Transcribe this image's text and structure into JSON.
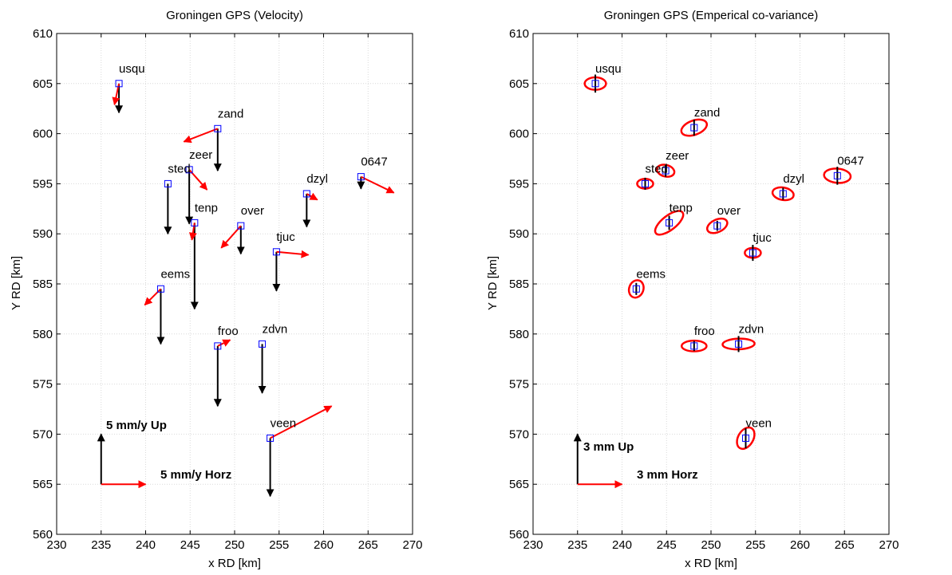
{
  "colors": {
    "horizontal": "#ff0000",
    "vertical": "#000000",
    "marker": "#0000ff",
    "ellipse": "#ff0000",
    "grid": "#d9d9d9"
  },
  "chart_data": [
    {
      "type": "scatter",
      "title": "Groningen GPS (Velocity)",
      "xlabel": "x RD [km]",
      "ylabel": "Y RD [km]",
      "xlim": [
        230,
        270
      ],
      "ylim": [
        560,
        610
      ],
      "xticks": [
        "230",
        "235",
        "240",
        "245",
        "250",
        "255",
        "260",
        "265",
        "270"
      ],
      "yticks": [
        "560",
        "565",
        "570",
        "575",
        "580",
        "585",
        "590",
        "595",
        "600",
        "605",
        "610"
      ],
      "grid": true,
      "arrow_scale_km_per_unit": 1,
      "scale_bar": {
        "x": 235,
        "y": 565,
        "up_label": "5 mm/y Up",
        "horz_label": "5 mm/y Horz",
        "up": 5,
        "horz": 5
      },
      "stations": [
        {
          "name": "usqu",
          "x": 237.0,
          "y": 605.0,
          "dx": -0.5,
          "dy": -2.1,
          "up": -2.9
        },
        {
          "name": "zand",
          "x": 248.1,
          "y": 600.5,
          "dx": -3.8,
          "dy": -1.3,
          "up": -4.2
        },
        {
          "name": "zeer",
          "x": 244.9,
          "y": 596.4,
          "dx": 2.0,
          "dy": -2.0,
          "up": -5.4
        },
        {
          "name": "sted",
          "x": 242.5,
          "y": 595.0,
          "dx": 0.0,
          "dy": 0.0,
          "up": -5.0
        },
        {
          "name": "tenp",
          "x": 245.5,
          "y": 591.1,
          "dx": -0.3,
          "dy": -1.7,
          "up": -8.6
        },
        {
          "name": "over",
          "x": 250.7,
          "y": 590.8,
          "dx": -2.2,
          "dy": -2.2,
          "up": -2.8
        },
        {
          "name": "tjuc",
          "x": 254.7,
          "y": 588.2,
          "dx": 3.6,
          "dy": -0.3,
          "up": -3.9
        },
        {
          "name": "dzyl",
          "x": 258.1,
          "y": 594.0,
          "dx": 1.2,
          "dy": -0.6,
          "up": -3.3
        },
        {
          "name": "0647",
          "x": 264.2,
          "y": 595.7,
          "dx": 3.7,
          "dy": -1.6,
          "up": -1.2
        },
        {
          "name": "eems",
          "x": 241.7,
          "y": 584.5,
          "dx": -1.8,
          "dy": -1.6,
          "up": -5.5
        },
        {
          "name": "froo",
          "x": 248.1,
          "y": 578.8,
          "dx": 1.4,
          "dy": 0.6,
          "up": -6.0
        },
        {
          "name": "zdvn",
          "x": 253.1,
          "y": 579.0,
          "dx": 0.0,
          "dy": 0.0,
          "up": -4.9
        },
        {
          "name": "veen",
          "x": 254.0,
          "y": 569.6,
          "dx": 6.9,
          "dy": 3.2,
          "up": -5.8
        }
      ]
    },
    {
      "type": "scatter",
      "title": "Groningen GPS (Emperical co-variance)",
      "xlabel": "x RD [km]",
      "ylabel": "Y RD [km]",
      "xlim": [
        230,
        270
      ],
      "ylim": [
        560,
        610
      ],
      "xticks": [
        "230",
        "235",
        "240",
        "245",
        "250",
        "255",
        "260",
        "265",
        "270"
      ],
      "yticks": [
        "560",
        "565",
        "570",
        "575",
        "580",
        "585",
        "590",
        "595",
        "600",
        "605",
        "610"
      ],
      "grid": true,
      "scale_bar": {
        "x": 235,
        "y": 565,
        "up_label": "3 mm Up",
        "horz_label": "3 mm Horz",
        "up": 5,
        "horz": 5
      },
      "stations": [
        {
          "name": "usqu",
          "x": 237.0,
          "y": 605.0,
          "ellipse_a": 1.2,
          "ellipse_b": 0.7,
          "ellipse_angle": 0,
          "up_err": 0.9
        },
        {
          "name": "zand",
          "x": 248.1,
          "y": 600.6,
          "ellipse_a": 1.5,
          "ellipse_b": 0.8,
          "ellipse_angle": 20,
          "up_err": 0.8
        },
        {
          "name": "zeer",
          "x": 244.9,
          "y": 596.3,
          "ellipse_a": 1.0,
          "ellipse_b": 0.65,
          "ellipse_angle": -15,
          "up_err": 0.6
        },
        {
          "name": "sted",
          "x": 242.6,
          "y": 595.0,
          "ellipse_a": 0.9,
          "ellipse_b": 0.55,
          "ellipse_angle": 0,
          "up_err": 0.6
        },
        {
          "name": "tenp",
          "x": 245.3,
          "y": 591.1,
          "ellipse_a": 1.9,
          "ellipse_b": 0.8,
          "ellipse_angle": 38,
          "up_err": 0.7
        },
        {
          "name": "over",
          "x": 250.7,
          "y": 590.8,
          "ellipse_a": 1.2,
          "ellipse_b": 0.7,
          "ellipse_angle": 25,
          "up_err": 0.5
        },
        {
          "name": "tjuc",
          "x": 254.7,
          "y": 588.1,
          "ellipse_a": 0.9,
          "ellipse_b": 0.55,
          "ellipse_angle": 0,
          "up_err": 0.8
        },
        {
          "name": "dzyl",
          "x": 258.1,
          "y": 594.0,
          "ellipse_a": 1.2,
          "ellipse_b": 0.7,
          "ellipse_angle": -10,
          "up_err": 0.6
        },
        {
          "name": "0647",
          "x": 264.2,
          "y": 595.8,
          "ellipse_a": 1.5,
          "ellipse_b": 0.8,
          "ellipse_angle": -5,
          "up_err": 0.9
        },
        {
          "name": "eems",
          "x": 241.6,
          "y": 584.5,
          "ellipse_a": 1.0,
          "ellipse_b": 0.8,
          "ellipse_angle": 70,
          "up_err": 0.6
        },
        {
          "name": "froo",
          "x": 248.1,
          "y": 578.8,
          "ellipse_a": 1.4,
          "ellipse_b": 0.6,
          "ellipse_angle": 0,
          "up_err": 0.5
        },
        {
          "name": "zdvn",
          "x": 253.1,
          "y": 579.0,
          "ellipse_a": 1.8,
          "ellipse_b": 0.6,
          "ellipse_angle": 2,
          "up_err": 0.8
        },
        {
          "name": "veen",
          "x": 253.9,
          "y": 569.6,
          "ellipse_a": 1.3,
          "ellipse_b": 0.85,
          "ellipse_angle": 60,
          "up_err": 1.0
        }
      ]
    }
  ]
}
